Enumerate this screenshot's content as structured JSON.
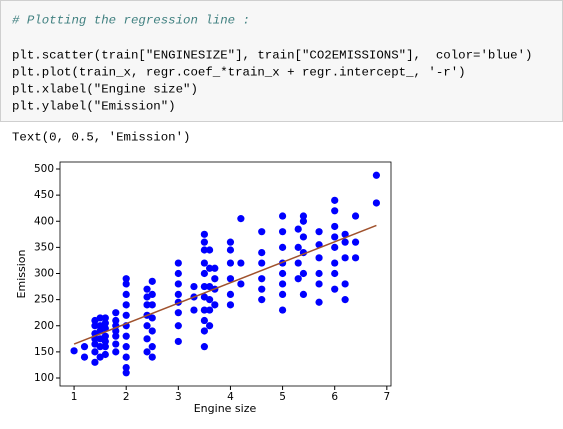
{
  "code": {
    "lines": [
      "# Plotting the regression line :",
      "plt.scatter(train[\"ENGINESIZE\"], train[\"CO2EMISSIONS\"],  color='blue')",
      "plt.plot(train_x, regr.coef_*train_x + regr.intercept_, '-r')",
      "plt.xlabel(\"Engine size\")",
      "plt.ylabel(\"Emission\")"
    ]
  },
  "output": {
    "text": "Text(0, 0.5, 'Emission')"
  },
  "chart_data": {
    "type": "scatter",
    "xlabel": "Engine size",
    "ylabel": "Emission",
    "color": "#0000ff",
    "x": [
      1.0,
      1.2,
      1.2,
      1.4,
      1.4,
      1.4,
      1.4,
      1.4,
      1.4,
      1.4,
      1.5,
      1.5,
      1.5,
      1.5,
      1.5,
      1.5,
      1.6,
      1.6,
      1.6,
      1.6,
      1.6,
      1.6,
      1.6,
      1.8,
      1.8,
      1.8,
      1.8,
      1.8,
      1.8,
      1.8,
      2.0,
      2.0,
      2.0,
      2.0,
      2.0,
      2.0,
      2.0,
      2.0,
      2.0,
      2.0,
      2.0,
      2.4,
      2.4,
      2.4,
      2.4,
      2.4,
      2.4,
      2.4,
      2.5,
      2.5,
      2.5,
      2.5,
      2.5,
      2.5,
      2.5,
      3.0,
      3.0,
      3.0,
      3.0,
      3.0,
      3.0,
      3.0,
      3.0,
      3.3,
      3.3,
      3.3,
      3.5,
      3.5,
      3.5,
      3.5,
      3.5,
      3.5,
      3.5,
      3.5,
      3.5,
      3.5,
      3.5,
      3.6,
      3.6,
      3.6,
      3.6,
      3.6,
      3.6,
      3.7,
      3.7,
      3.7,
      3.7,
      4.0,
      4.0,
      4.0,
      4.0,
      4.0,
      4.0,
      4.2,
      4.2,
      4.2,
      4.6,
      4.6,
      4.6,
      4.6,
      4.6,
      4.6,
      5.0,
      5.0,
      5.0,
      5.0,
      5.0,
      5.0,
      5.0,
      5.0,
      5.3,
      5.3,
      5.3,
      5.3,
      5.4,
      5.4,
      5.4,
      5.4,
      5.4,
      5.4,
      5.7,
      5.7,
      5.7,
      5.7,
      5.7,
      5.7,
      6.0,
      6.0,
      6.0,
      6.0,
      6.0,
      6.0,
      6.0,
      6.0,
      6.2,
      6.2,
      6.2,
      6.2,
      6.2,
      6.4,
      6.4,
      6.4,
      6.8,
      6.8
    ],
    "values": [
      152,
      140,
      160,
      130,
      150,
      165,
      175,
      185,
      200,
      210,
      140,
      160,
      175,
      190,
      200,
      215,
      145,
      160,
      170,
      180,
      195,
      205,
      215,
      150,
      165,
      180,
      190,
      200,
      210,
      225,
      110,
      120,
      140,
      160,
      180,
      200,
      220,
      240,
      260,
      280,
      290,
      150,
      175,
      200,
      220,
      240,
      255,
      270,
      140,
      160,
      190,
      215,
      240,
      260,
      285,
      170,
      200,
      225,
      245,
      260,
      280,
      300,
      320,
      230,
      255,
      275,
      160,
      190,
      210,
      230,
      255,
      275,
      300,
      320,
      345,
      360,
      375,
      200,
      230,
      250,
      275,
      310,
      345,
      240,
      270,
      290,
      310,
      240,
      260,
      290,
      320,
      345,
      360,
      280,
      320,
      405,
      250,
      270,
      290,
      320,
      340,
      380,
      230,
      260,
      280,
      300,
      320,
      350,
      380,
      410,
      290,
      320,
      350,
      385,
      260,
      300,
      340,
      370,
      400,
      410,
      245,
      280,
      300,
      330,
      355,
      380,
      270,
      300,
      320,
      350,
      370,
      390,
      440,
      420,
      250,
      280,
      330,
      360,
      375,
      330,
      360,
      410,
      435,
      488
    ],
    "fit_x": [
      1.0,
      6.8
    ],
    "fit_values": [
      165,
      392
    ],
    "fit_color": "#a0522d",
    "xlim": [
      0.73,
      7.08
    ],
    "ylim": [
      84.7,
      513.4
    ],
    "xticks": [
      1,
      2,
      3,
      4,
      5,
      6,
      7
    ],
    "yticks": [
      100,
      150,
      200,
      250,
      300,
      350,
      400,
      450,
      500
    ]
  }
}
